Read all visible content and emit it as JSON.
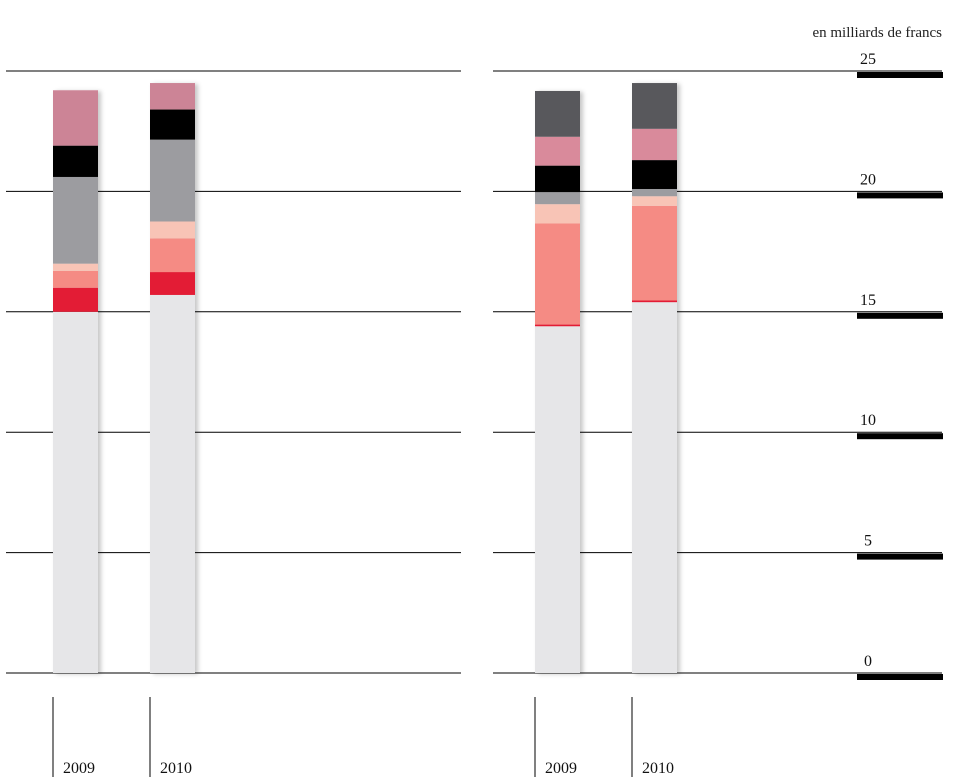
{
  "unit_label": "en milliards de francs",
  "axis": {
    "ticks": [
      0,
      5,
      10,
      15,
      20,
      25
    ],
    "ylim": [
      0,
      25
    ]
  },
  "chart_data": [
    {
      "type": "bar",
      "stacked": true,
      "categories": [
        "2009",
        "2010"
      ],
      "ylim": [
        0,
        25
      ],
      "series": [
        {
          "color": "#e6e6e8",
          "values": [
            15.0,
            15.7
          ]
        },
        {
          "color": "#e31e35",
          "values": [
            1.0,
            0.95
          ]
        },
        {
          "color": "#f58b84",
          "values": [
            0.7,
            1.4
          ]
        },
        {
          "color": "#f8c4b6",
          "values": [
            0.3,
            0.7
          ]
        },
        {
          "color": "#9c9ca0",
          "values": [
            3.6,
            3.4
          ]
        },
        {
          "color": "#000000",
          "values": [
            1.3,
            1.25
          ]
        },
        {
          "color": "#cc8496",
          "values": [
            2.3,
            1.1
          ]
        }
      ]
    },
    {
      "type": "bar",
      "stacked": true,
      "categories": [
        "2009",
        "2010"
      ],
      "ylim": [
        0,
        25
      ],
      "series": [
        {
          "color": "#e6e6e8",
          "values": [
            14.4,
            15.4
          ]
        },
        {
          "color": "#e31e35",
          "values": [
            0.07,
            0.07
          ]
        },
        {
          "color": "#f58b84",
          "values": [
            4.2,
            3.93
          ]
        },
        {
          "color": "#f8c4b6",
          "values": [
            0.8,
            0.4
          ]
        },
        {
          "color": "#9c9ca0",
          "values": [
            0.5,
            0.3
          ]
        },
        {
          "color": "#000000",
          "values": [
            1.1,
            1.2
          ]
        },
        {
          "color": "#d98a9b",
          "values": [
            1.2,
            1.3
          ]
        },
        {
          "color": "#58585b",
          "values": [
            1.9,
            1.9
          ]
        }
      ]
    }
  ]
}
